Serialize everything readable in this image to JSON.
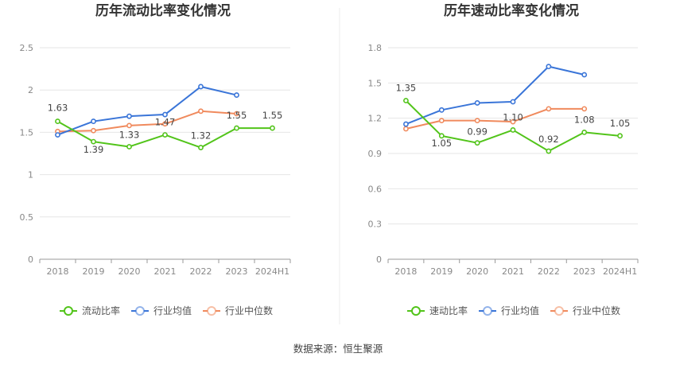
{
  "source_text": "数据来源：恒生聚源",
  "chart_data": [
    {
      "type": "line",
      "title": "历年流动比率变化情况",
      "categories": [
        "2018",
        "2019",
        "2020",
        "2021",
        "2022",
        "2023",
        "2024H1"
      ],
      "ylim": [
        0,
        2.5
      ],
      "yticks": [
        "0",
        "0.5",
        "1",
        "1.5",
        "2",
        "2.5"
      ],
      "ytick_values": [
        0,
        0.5,
        1,
        1.5,
        2,
        2.5
      ],
      "grid": true,
      "legend_position": "bottom",
      "series": [
        {
          "name": "流动比率",
          "color": "#52c41a",
          "values": [
            1.63,
            1.39,
            1.33,
            1.47,
            1.32,
            1.55,
            1.55
          ],
          "labels": [
            "1.63",
            "1.39",
            "1.33",
            "1.47",
            "1.32",
            "1.55",
            "1.55"
          ]
        },
        {
          "name": "行业均值",
          "color": "#3a75d8",
          "values": [
            1.47,
            1.63,
            1.69,
            1.71,
            2.04,
            1.94,
            null
          ]
        },
        {
          "name": "行业中位数",
          "color": "#f08a5d",
          "values": [
            1.51,
            1.52,
            1.58,
            1.6,
            1.75,
            1.72,
            null
          ]
        }
      ]
    },
    {
      "type": "line",
      "title": "历年速动比率变化情况",
      "categories": [
        "2018",
        "2019",
        "2020",
        "2021",
        "2022",
        "2023",
        "2024H1"
      ],
      "ylim": [
        0,
        1.8
      ],
      "yticks": [
        "0",
        "0.3",
        "0.6",
        "0.9",
        "1.2",
        "1.5",
        "1.8"
      ],
      "ytick_values": [
        0,
        0.3,
        0.6,
        0.9,
        1.2,
        1.5,
        1.8
      ],
      "grid": true,
      "legend_position": "bottom",
      "series": [
        {
          "name": "速动比率",
          "color": "#52c41a",
          "values": [
            1.35,
            1.05,
            0.99,
            1.1,
            0.92,
            1.08,
            1.05
          ],
          "labels": [
            "1.35",
            "1.05",
            "0.99",
            "1.10",
            "0.92",
            "1.08",
            "1.05"
          ]
        },
        {
          "name": "行业均值",
          "color": "#3a75d8",
          "values": [
            1.15,
            1.27,
            1.33,
            1.34,
            1.64,
            1.57,
            null
          ]
        },
        {
          "name": "行业中位数",
          "color": "#f08a5d",
          "values": [
            1.11,
            1.18,
            1.18,
            1.17,
            1.28,
            1.28,
            null
          ]
        }
      ]
    }
  ]
}
